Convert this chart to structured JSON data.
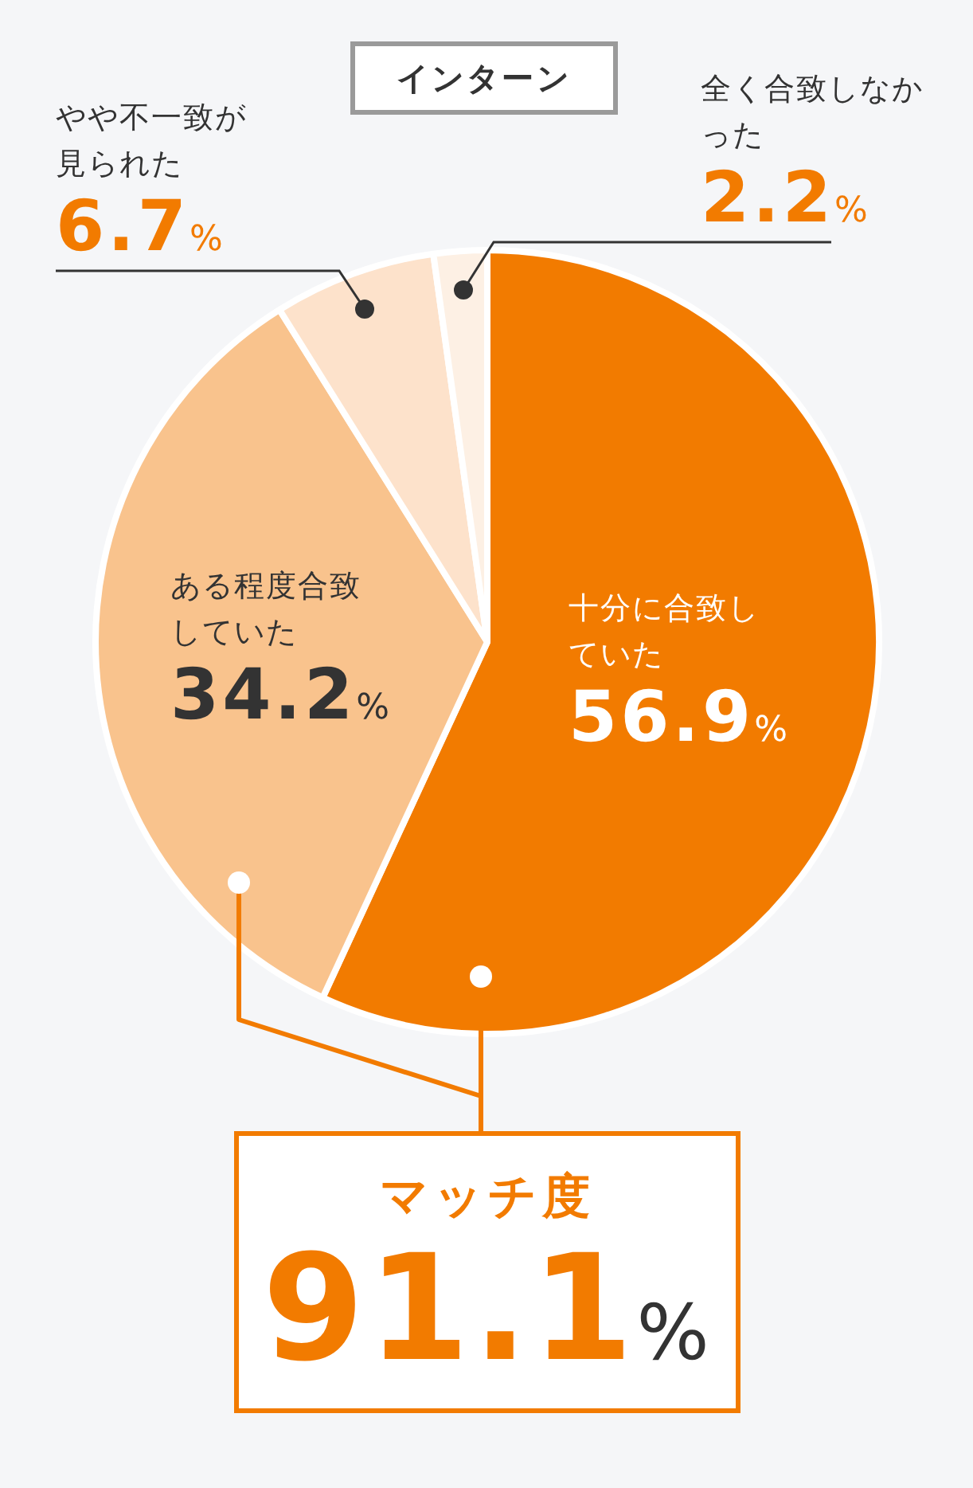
{
  "chart_data": {
    "type": "pie",
    "title": "インターン",
    "categories": [
      "十分に合致していた",
      "ある程度合致していた",
      "やや不一致が見られた",
      "全く合致しなかった"
    ],
    "values": [
      56.9,
      34.2,
      6.7,
      2.2
    ],
    "value_labels": [
      "56.9%",
      "34.2%",
      "6.7%",
      "2.2%"
    ],
    "colors": [
      "#f27b00",
      "#f9c38d",
      "#fde2cb",
      "#fdf0e4"
    ],
    "legend": false,
    "annotations": [
      "マッチ度",
      "91.1%"
    ]
  }
}
